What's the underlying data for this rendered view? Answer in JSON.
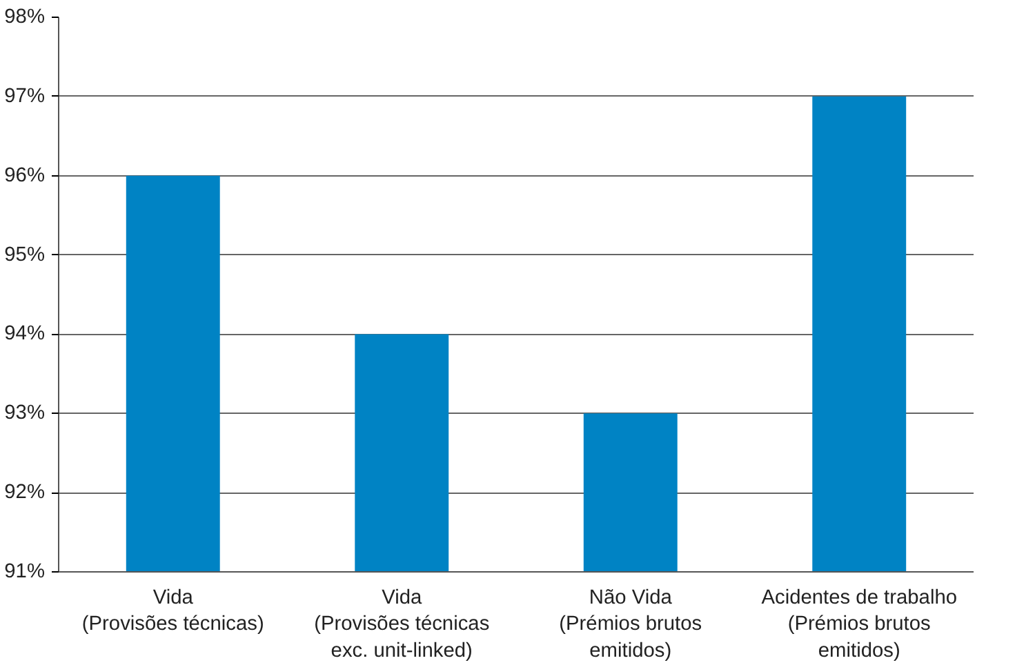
{
  "chart_data": {
    "type": "bar",
    "categories": [
      "Vida\n(Provisões técnicas)",
      "Vida\n(Provisões técnicas\nexc. unit-linked)",
      "Não Vida\n(Prémios brutos\nemitidos)",
      "Acidentes de trabalho\n(Prémios brutos\nemitidos)"
    ],
    "values": [
      96,
      94,
      93,
      97
    ],
    "color": "#0083c4",
    "ylim": [
      91,
      98
    ],
    "yticks": [
      {
        "value": 91,
        "label": "91%"
      },
      {
        "value": 92,
        "label": "92%"
      },
      {
        "value": 93,
        "label": "93%"
      },
      {
        "value": 94,
        "label": "94%"
      },
      {
        "value": 95,
        "label": "95%"
      },
      {
        "value": 96,
        "label": "96%"
      },
      {
        "value": 97,
        "label": "97%"
      },
      {
        "value": 98,
        "label": "98%"
      }
    ],
    "grid": "y"
  }
}
